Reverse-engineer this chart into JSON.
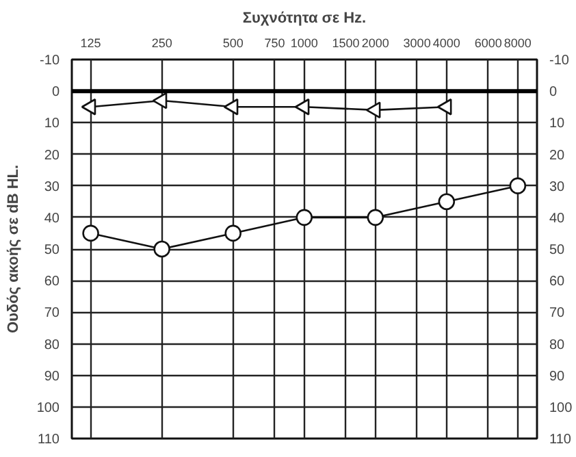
{
  "chart_data": {
    "type": "line",
    "title": "Συχνότητα σε Hz.",
    "ylabel": "Ουδός ακοής σε dB HL.",
    "xlim": [
      104,
      9650
    ],
    "xticks": [
      125,
      250,
      500,
      750,
      1000,
      1500,
      2000,
      3000,
      4000,
      6000,
      8000
    ],
    "ylim": [
      110,
      -10
    ],
    "yticks": [
      -10,
      0,
      10,
      20,
      30,
      40,
      50,
      60,
      70,
      80,
      90,
      100,
      110
    ],
    "y2lim": [
      110,
      -10
    ],
    "y2ticks": [
      -10,
      0,
      10,
      20,
      30,
      40,
      50,
      60,
      70,
      80,
      90,
      100,
      110
    ],
    "log": "x",
    "grid": true,
    "ref_lines": [
      {
        "axis": "y",
        "value": 0,
        "color": "#000000"
      }
    ],
    "series": [
      {
        "color": "#111111",
        "marker": "circle",
        "x": [
          125,
          250,
          500,
          1000,
          2000,
          4000,
          8000
        ],
        "values": [
          45,
          50,
          45,
          40,
          40,
          35,
          30
        ]
      },
      {
        "color": "#111111",
        "marker": "triangle",
        "x": [
          125,
          250,
          500,
          1000,
          2000,
          4000
        ],
        "values": [
          5,
          3,
          5,
          5,
          6,
          5
        ]
      }
    ]
  }
}
